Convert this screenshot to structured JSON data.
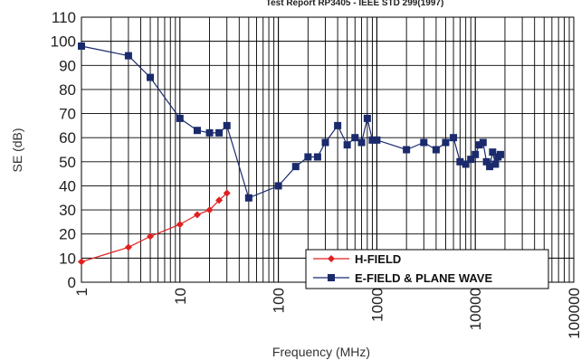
{
  "chart_data": {
    "type": "line",
    "title": "Test Report RP3405 - IEEE STD 299(1997)",
    "xlabel": "Frequency (MHz)",
    "ylabel": "SE (dB)",
    "xscale": "log",
    "xlim": [
      1,
      100000
    ],
    "ylim": [
      0,
      110
    ],
    "yticks": [
      "0",
      "10",
      "20",
      "30",
      "40",
      "50",
      "60",
      "70",
      "80",
      "90",
      "100",
      "110"
    ],
    "xticks": [
      "1",
      "10",
      "100",
      "1000",
      "10000",
      "100000"
    ],
    "grid": "on",
    "legend_position": "bottom-right",
    "series": [
      {
        "name": "H-FIELD",
        "color": "#e02020",
        "marker": "diamond",
        "x": [
          1,
          3,
          5,
          10,
          15,
          20,
          25,
          30
        ],
        "y": [
          8.5,
          14.5,
          19,
          24,
          28,
          30,
          34,
          37
        ]
      },
      {
        "name": "E-FIELD & PLANE WAVE",
        "color": "#1a2a6c",
        "marker": "square",
        "x": [
          1,
          3,
          5,
          10,
          15,
          20,
          25,
          30,
          50,
          100,
          150,
          200,
          250,
          300,
          400,
          500,
          600,
          700,
          800,
          900,
          1000,
          2000,
          3000,
          4000,
          5000,
          6000,
          7000,
          8000,
          9000,
          10000,
          11000,
          12000,
          13000,
          14000,
          15000,
          16000,
          17000,
          18000
        ],
        "y": [
          98,
          94,
          85,
          68,
          63,
          62,
          62,
          65,
          35,
          40,
          48,
          52,
          52,
          58,
          65,
          57,
          60,
          58,
          68,
          59,
          59,
          55,
          58,
          55,
          58,
          60,
          50,
          49,
          51,
          53,
          57,
          58,
          50,
          48,
          54,
          49,
          52,
          53
        ]
      }
    ]
  }
}
